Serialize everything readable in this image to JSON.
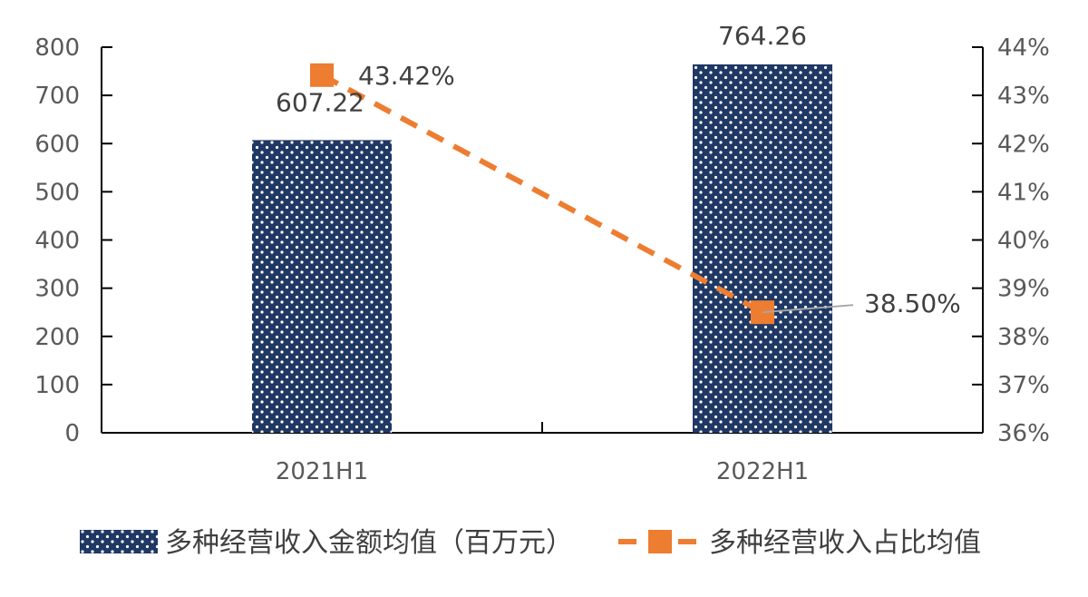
{
  "chart_data": {
    "type": "bar",
    "categories": [
      "2021H1",
      "2022H1"
    ],
    "series": [
      {
        "name": "多种经营收入金额均值（百万元）",
        "type": "bar",
        "axis": "left",
        "values": [
          607.22,
          764.26
        ],
        "labels": [
          "607.22",
          "764.26"
        ],
        "color": "#1f3864"
      },
      {
        "name": "多种经营收入占比均值",
        "type": "line",
        "axis": "right",
        "values": [
          43.42,
          38.5
        ],
        "labels": [
          "43.42%",
          "38.50%"
        ],
        "color": "#ed7d31"
      }
    ],
    "left_axis": {
      "ylim": [
        0,
        800
      ],
      "ticks": [
        "0",
        "100",
        "200",
        "300",
        "400",
        "500",
        "600",
        "700",
        "800"
      ]
    },
    "right_axis": {
      "ylim": [
        36,
        44
      ],
      "ticks": [
        "36%",
        "37%",
        "38%",
        "39%",
        "40%",
        "41%",
        "42%",
        "43%",
        "44%"
      ]
    },
    "grid": false,
    "legend_position": "bottom"
  }
}
